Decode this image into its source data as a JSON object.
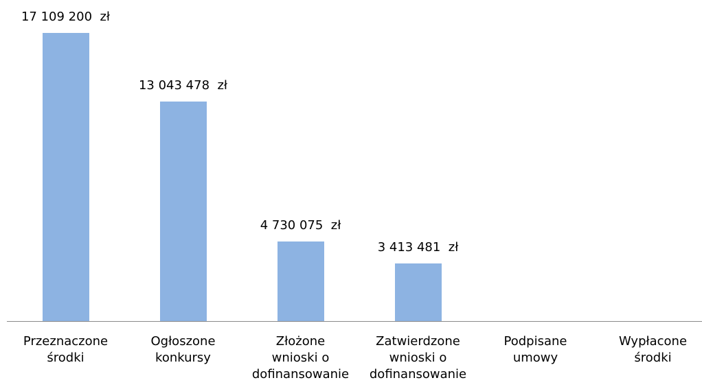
{
  "chart_data": {
    "type": "bar",
    "categories": [
      "Przeznaczone\nśrodki",
      "Ogłoszone\nkonkursy",
      "Złożone\nwnioski o\ndofinansowanie",
      "Zatwierdzone\nwnioski o\ndofinansowanie",
      "Podpisane\numowy",
      "Wypłacone\nśrodki"
    ],
    "values": [
      17109200,
      13043478,
      4730075,
      3413481,
      null,
      null
    ],
    "value_labels": [
      "17 109 200  zł",
      "13 043 478  zł",
      "4 730 075  zł",
      "3 413 481  zł",
      null,
      null
    ],
    "color": "#8db3e2"
  }
}
